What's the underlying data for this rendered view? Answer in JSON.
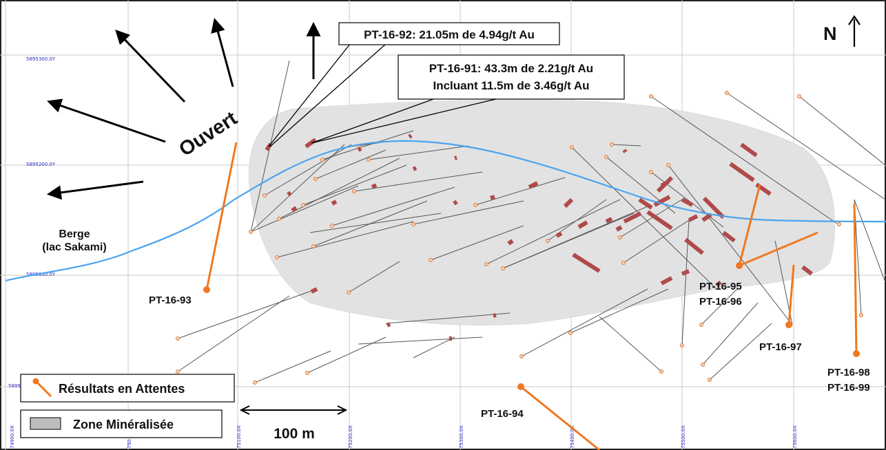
{
  "map": {
    "north_label": "N",
    "open_label": "Ouvert",
    "shore_label_line1": "Berge",
    "shore_label_line2": "(lac Sakami)",
    "scale_label": "100 m"
  },
  "callouts": [
    {
      "id": "pt-16-92",
      "text": "PT-16-92: 21.05m de 4.94g/t Au"
    },
    {
      "id": "pt-16-91",
      "line1": "PT-16-91: 43.3m de 2.21g/t Au",
      "line2": "Incluant 11.5m de 3.46g/t Au"
    }
  ],
  "holes": [
    {
      "id": "pt-16-93",
      "label": "PT-16-93"
    },
    {
      "id": "pt-16-94",
      "label": "PT-16-94"
    },
    {
      "id": "pt-16-95-96",
      "label1": "PT-16-95",
      "label2": "PT-16-96"
    },
    {
      "id": "pt-16-97",
      "label": "PT-16-97"
    },
    {
      "id": "pt-16-98-99",
      "label1": "PT-16-98",
      "label2": "PT-16-99"
    }
  ],
  "grid": {
    "northings": [
      "5895300.0Y",
      "5895200.0Y",
      "5895100.0Y",
      "5895..."
    ],
    "eastings": [
      "74900.0X",
      "750...",
      "75100.0X",
      "75200.0X",
      "75300.0X",
      "75400.0X",
      "75500.0X",
      "75600.0X"
    ]
  },
  "legend": {
    "pending_label": "Résultats en Attentes",
    "zone_label": "Zone Minéralisée"
  },
  "colors": {
    "pending": "#f07820",
    "shoreline": "#4aa3f0",
    "intercept": "#b04a4a",
    "zone": "#e2e2e2",
    "grid": "#c8c8c8",
    "grid_label": "#2a2acc"
  }
}
